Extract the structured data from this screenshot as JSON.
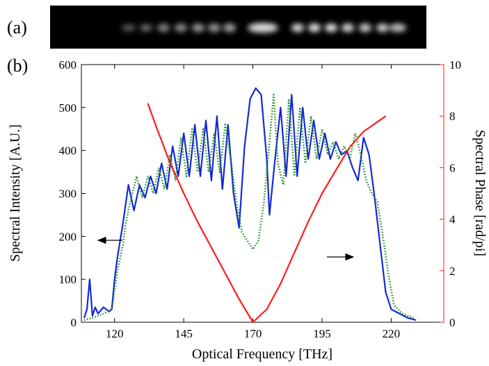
{
  "panel_labels": [
    "(a)",
    "(b)"
  ],
  "chart_data": {
    "type": "line",
    "xlabel": "Optical Frequency [THz]",
    "ylabel": "Spectral Intensity [A.U.]",
    "y2label": "Spectral Phase [rad/pi]",
    "xlim": [
      108,
      239
    ],
    "xticks": [
      120,
      145,
      170,
      195,
      220
    ],
    "ylim": [
      0,
      600
    ],
    "yticks": [
      0,
      100,
      200,
      300,
      400,
      500,
      600
    ],
    "y2lim": [
      0,
      10
    ],
    "y2ticks": [
      0,
      2,
      4,
      6,
      8,
      10
    ],
    "y2color": "#ff1a1a",
    "series": [
      {
        "color": "#1428d8",
        "style": "solid",
        "x": [
          109,
          110,
          111,
          112,
          113,
          114,
          116,
          118,
          119,
          120,
          121,
          123,
          125,
          127,
          129,
          131,
          133,
          135,
          137,
          139,
          141,
          143,
          145,
          147,
          149,
          151,
          153,
          155,
          157,
          159,
          161,
          163,
          165,
          167,
          169,
          171,
          173,
          175,
          176,
          178,
          180,
          182,
          184,
          186,
          188,
          190,
          192,
          194,
          196,
          198,
          200,
          202,
          204,
          206,
          208,
          210,
          212,
          214,
          216,
          218,
          220,
          223,
          226,
          229
        ],
        "values": [
          10,
          30,
          100,
          15,
          35,
          20,
          35,
          25,
          30,
          100,
          150,
          230,
          320,
          260,
          320,
          290,
          340,
          300,
          370,
          310,
          410,
          340,
          440,
          340,
          460,
          340,
          470,
          330,
          480,
          310,
          460,
          300,
          220,
          410,
          520,
          545,
          530,
          380,
          250,
          380,
          500,
          340,
          530,
          340,
          500,
          380,
          470,
          380,
          440,
          380,
          420,
          390,
          400,
          360,
          330,
          430,
          390,
          290,
          180,
          70,
          30,
          20,
          10,
          5
        ]
      },
      {
        "color": "#1e8c1e",
        "style": "dotted",
        "x": [
          109,
          112,
          116,
          119,
          121,
          123,
          124,
          126,
          128,
          130,
          132,
          134,
          136,
          138,
          140,
          142,
          144,
          146,
          148,
          150,
          152,
          154,
          156,
          158,
          160,
          162,
          164,
          166,
          168,
          170,
          172,
          174,
          176,
          177.5,
          179,
          181,
          183,
          185,
          187,
          189,
          191,
          193,
          195,
          197,
          199,
          201,
          203,
          205,
          207,
          209,
          211,
          213,
          215,
          217,
          219,
          221,
          224,
          228
        ],
        "values": [
          5,
          10,
          20,
          30,
          120,
          180,
          230,
          290,
          340,
          290,
          340,
          300,
          360,
          310,
          390,
          330,
          430,
          340,
          450,
          350,
          450,
          350,
          440,
          350,
          460,
          380,
          280,
          210,
          190,
          170,
          190,
          280,
          420,
          530,
          370,
          320,
          520,
          340,
          500,
          370,
          480,
          380,
          450,
          390,
          420,
          380,
          410,
          380,
          440,
          390,
          330,
          300,
          280,
          200,
          110,
          40,
          20,
          10
        ]
      },
      {
        "color": "#ff1a1a",
        "style": "solid",
        "axis": "y2",
        "x": [
          132,
          135,
          140,
          145,
          150,
          155,
          160,
          165,
          170,
          175,
          180,
          185,
          190,
          195,
          200,
          205,
          210,
          218
        ],
        "values": [
          8.5,
          7.6,
          6.2,
          5.0,
          3.9,
          2.9,
          1.9,
          0.9,
          0,
          0.5,
          1.5,
          2.7,
          3.9,
          5.0,
          5.9,
          6.8,
          7.4,
          8.0
        ]
      }
    ]
  }
}
